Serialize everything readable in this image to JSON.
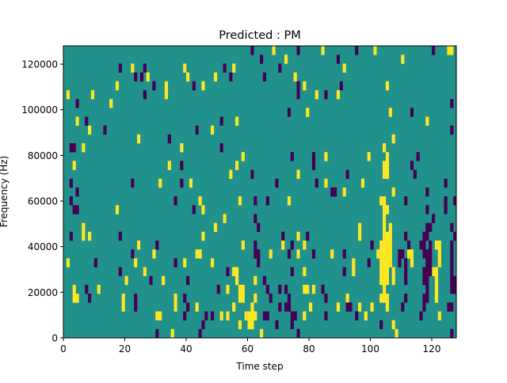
{
  "chart_data": {
    "type": "heatmap",
    "title": "Predicted : PM",
    "xlabel": "Time step",
    "ylabel": "Frequency (Hz)",
    "xlim": [
      0,
      128
    ],
    "ylim": [
      0,
      128000
    ],
    "n_time_steps": 128,
    "n_freq_bins": 33,
    "x_ticks": [
      "0",
      "20",
      "40",
      "60",
      "80",
      "100",
      "120"
    ],
    "x_tick_values": [
      0,
      20,
      40,
      60,
      80,
      100,
      120
    ],
    "y_ticks": [
      "0",
      "20000",
      "40000",
      "60000",
      "80000",
      "100000",
      "120000"
    ],
    "y_tick_values": [
      0,
      20000,
      40000,
      60000,
      80000,
      100000,
      120000
    ],
    "colormap": {
      "-1": "#440154",
      "0": "#21918c",
      "1": "#fde725"
    },
    "default_value": 0,
    "rows_order": "highest frequency bin first",
    "rows": [
      {
        "y": [
          68,
          84,
          101,
          125,
          126
        ],
        "p": [
          61,
          76,
          95,
          120
        ]
      },
      {
        "y": [
          72,
          110
        ],
        "p": [
          64,
          89
        ]
      },
      {
        "y": [
          22,
          39,
          55,
          91
        ],
        "p": [
          18,
          26,
          52,
          70
        ]
      },
      {
        "y": [
          27,
          40,
          49,
          75
        ],
        "p": [
          23,
          25,
          54,
          65
        ]
      },
      {
        "y": [
          17,
          33,
          45,
          78,
          105
        ],
        "p": [
          29,
          42,
          76,
          90
        ]
      },
      {
        "y": [
          1,
          9,
          33,
          82,
          89
        ],
        "p": [
          26,
          76,
          85
        ]
      },
      {
        "y": [
          15
        ],
        "p": [
          4,
          126
        ]
      },
      {
        "y": [
          79,
          106
        ],
        "p": [
          73,
          113
        ]
      },
      {
        "y": [
          4,
          56,
          118
        ],
        "p": [
          7,
          51
        ]
      },
      {
        "y": [
          8,
          48
        ],
        "p": [
          13,
          43,
          126
        ]
      },
      {
        "y": [
          24,
          107
        ],
        "p": [
          34
        ]
      },
      {
        "y": [
          6,
          38,
          104
        ],
        "p": [
          2,
          3,
          51
        ]
      },
      {
        "y": [
          58,
          85,
          99,
          105
        ],
        "p": [
          74,
          81,
          115
        ]
      },
      {
        "y": [
          3,
          34,
          56,
          104,
          105
        ],
        "p": [
          38,
          81,
          113
        ]
      },
      {
        "y": [
          54,
          76,
          104,
          105
        ],
        "p": [
          61,
          92,
          114
        ]
      },
      {
        "y": [
          31,
          41,
          85,
          97
        ],
        "p": [
          2,
          22,
          38,
          69,
          82,
          124
        ]
      },
      {
        "y": [
          91,
          107
        ],
        "p": [
          4,
          87,
          88,
          118
        ]
      },
      {
        "y": [
          44,
          57,
          73,
          103,
          104
        ],
        "p": [
          2,
          36,
          62,
          66,
          111,
          124,
          127
        ]
      },
      {
        "y": [
          17,
          45,
          104,
          105
        ],
        "p": [
          3,
          4,
          42,
          118,
          124
        ]
      },
      {
        "y": [
          52,
          104
        ],
        "p": [
          62,
          120
        ]
      },
      {
        "y": [
          6,
          49,
          96,
          104,
          106
        ],
        "p": [
          63,
          118,
          119,
          126
        ]
      },
      {
        "y": [
          6,
          8,
          45,
          76,
          96,
          104,
          105,
          106
        ],
        "p": [
          2,
          18,
          71,
          79,
          111,
          117,
          118,
          127
        ]
      },
      {
        "y": [
          24,
          58,
          71,
          78,
          103,
          104,
          105,
          106,
          121,
          122
        ],
        "p": [
          30,
          62,
          74,
          100,
          112,
          116,
          117,
          119,
          126
        ]
      },
      {
        "y": [
          29,
          43,
          44,
          67,
          76,
          87,
          102,
          103,
          104,
          105,
          106,
          112,
          113,
          122
        ],
        "p": [
          22,
          62,
          63,
          73,
          81,
          91,
          109,
          110,
          117,
          118,
          119,
          126
        ]
      },
      {
        "y": [
          1,
          23,
          39,
          48,
          94,
          103,
          104,
          105,
          106,
          113,
          122
        ],
        "p": [
          10,
          36,
          63,
          99,
          109,
          111,
          118,
          119,
          126
        ]
      },
      {
        "y": [
          26,
          55,
          56,
          78,
          94,
          103,
          104,
          105,
          107,
          120,
          121
        ],
        "p": [
          18,
          53,
          74,
          91,
          111,
          117,
          118,
          119,
          126
        ]
      },
      {
        "y": [
          20,
          32,
          56,
          62,
          103,
          104,
          105,
          107,
          121
        ],
        "p": [
          28,
          40,
          65,
          111,
          117,
          118,
          126,
          127
        ]
      },
      {
        "y": [
          3,
          11,
          53,
          57,
          58,
          78,
          79,
          81,
          104,
          121
        ],
        "p": [
          7,
          50,
          66,
          70,
          72,
          84,
          118,
          126,
          127
        ]
      },
      {
        "y": [
          3,
          4,
          19,
          36,
          57,
          58,
          62,
          92,
          103,
          104,
          105,
          121
        ],
        "p": [
          8,
          23,
          39,
          67,
          73,
          85,
          111,
          117,
          118
        ]
      },
      {
        "y": [
          19,
          36,
          43,
          55,
          61,
          80,
          89,
          96,
          100,
          105
        ],
        "p": [
          23,
          40,
          70,
          72,
          73,
          92,
          93,
          110,
          117,
          125,
          126
        ]
      },
      {
        "y": [
          30,
          31,
          51,
          53,
          59,
          60,
          61,
          62,
          78,
          98,
          122
        ],
        "p": [
          39,
          46,
          48,
          65,
          66,
          74,
          75,
          85,
          95,
          116
        ]
      },
      {
        "y": [
          57,
          60,
          61,
          107
        ],
        "p": [
          45,
          69,
          74,
          103
        ]
      },
      {
        "y": [
          35,
          64,
          108
        ],
        "p": [
          30,
          44,
          76,
          126
        ]
      }
    ]
  }
}
